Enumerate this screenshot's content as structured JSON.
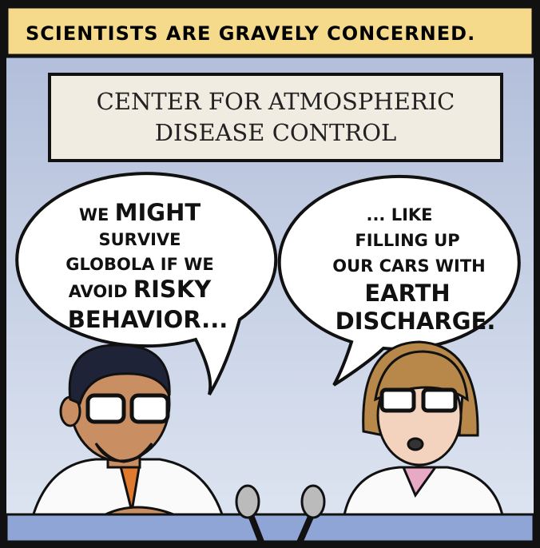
{
  "caption": "SCIENTISTS ARE GRAVELY CONCERNED.",
  "sign": {
    "lines": [
      "CENTER FOR ATMOSPHERIC",
      "DISEASE CONTROL"
    ]
  },
  "bubbles": [
    {
      "lines": [
        [
          "WE",
          "MIGHT"
        ],
        [
          "SURVIVE"
        ],
        [
          "GLOBOLA IF WE"
        ],
        [
          "AVOID",
          "RISKY"
        ],
        [
          "BEHAVIOR..."
        ]
      ]
    },
    {
      "lines": [
        [
          "... LIKE"
        ],
        [
          "FILLING UP"
        ],
        [
          "OUR CARS WITH"
        ],
        [
          "EARTH"
        ],
        [
          "DISCHARGE."
        ]
      ]
    }
  ]
}
